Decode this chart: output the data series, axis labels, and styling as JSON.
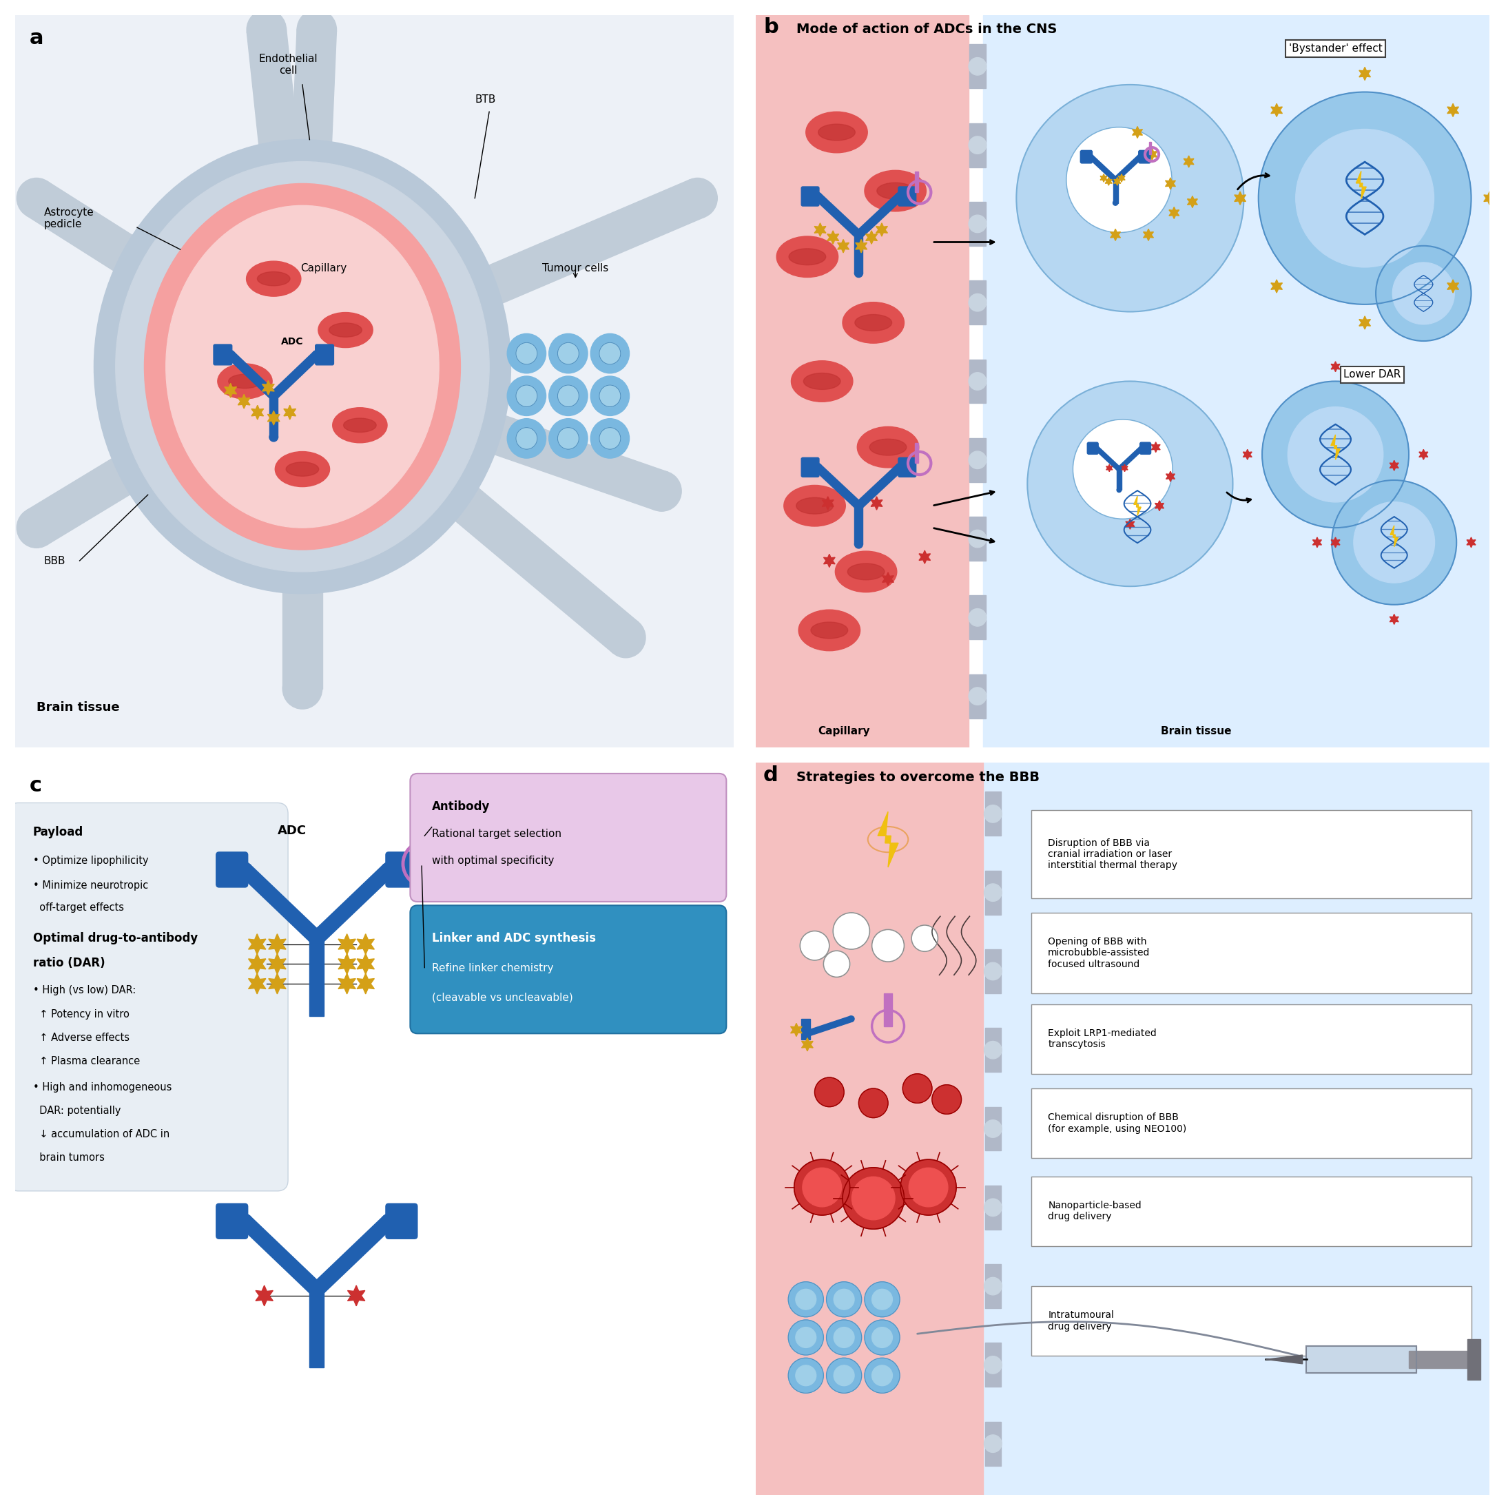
{
  "panel_a_label": "a",
  "panel_b_label": "b",
  "panel_c_label": "c",
  "panel_d_label": "d",
  "panel_b_title": "Mode of action of ADCs in the CNS",
  "panel_d_title": "Strategies to overcome the BBB",
  "bystander_label": "'Bystander' effect",
  "lower_dar_label": "Lower DAR",
  "capillary_label": "Capillary",
  "brain_tissue_label": "Brain tissue",
  "brain_tissue_a_label": "Brain tissue",
  "antibody_box_title": "Antibody",
  "antibody_box_text": "Rational target selection\nwith optimal specificity",
  "linker_box_title": "Linker and ADC synthesis",
  "linker_box_text": "Refine linker chemistry\n(cleavable vs uncleavable)",
  "payload_title": "Payload",
  "dar_title": "Optimal drug-to-antibody\nratio (DAR)",
  "adc_label": "ADC",
  "bbb_label": "BBB",
  "btb_label": "BTB",
  "endothelial_label": "Endothelial\ncell",
  "astrocyte_label": "Astrocyte\npedicle",
  "tumour_label": "Tumour cells",
  "d_strategies": [
    "Disruption of BBB via\ncranial irradiation or laser\ninterstitial thermal therapy",
    "Opening of BBB with\nmicrobubble-assisted\nfocused ultrasound",
    "Exploit LRP1-mediated\ntranscytosis",
    "Chemical disruption of BBB\n(for example, using NEO100)",
    "Nanoparticle-based\ndrug delivery",
    "Intratumoural\ndrug delivery"
  ],
  "bg_color": "#ffffff",
  "panel_bg_a": "#edf1f7",
  "capillary_color": "#f5a0a0",
  "capillary_inner": "#f9d0d0",
  "vessel_wall_color": "#b8c8d8",
  "rbc_color": "#e05050",
  "rbc_inner": "#c03030",
  "tumour_cell_color": "#7ab8e0",
  "tumour_cell_inner": "#9fcfe8",
  "adc_body_color": "#2060b0",
  "adc_payload_color": "#d4a017",
  "adc_linker_color": "#c070c0",
  "panel_b_capillary_bg": "#f5c0c0",
  "panel_b_tissue_bg": "#ddeeff",
  "barrier_color": "#b0b8c8",
  "cell_blue_outer": "#7ab8e8",
  "cell_blue_inner": "#a8d4f0",
  "dna_color": "#3070c0",
  "payload_star_yellow": "#d4a017",
  "payload_star_red": "#cc3030",
  "antibody_box_bg": "#e8c8e8",
  "linker_box_bg": "#3090c0",
  "info_box_bg": "#e8eef4",
  "lightning_color": "#f0c010"
}
